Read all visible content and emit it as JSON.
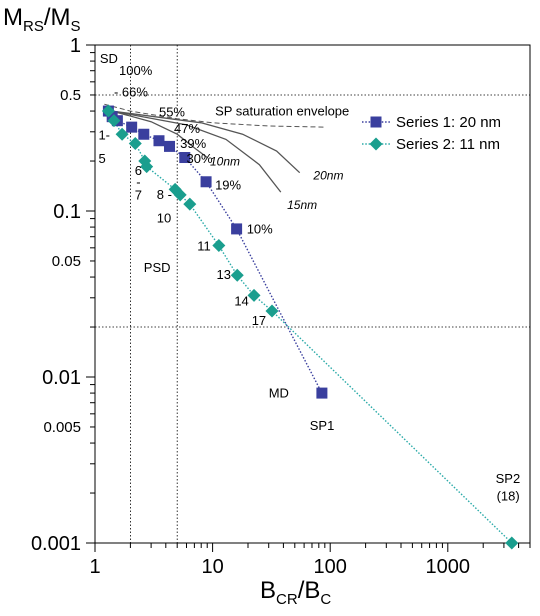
{
  "chart_data": {
    "type": "scatter",
    "x_scale": "log",
    "y_scale": "log",
    "xlim": [
      1,
      5000
    ],
    "ylim": [
      0.001,
      1
    ],
    "ylabel": {
      "main": "M",
      "sub1": "RS",
      "mid": "/M",
      "sub2": "S"
    },
    "xlabel": {
      "main": "B",
      "sub1": "CR",
      "mid": "/B",
      "sub2": "C"
    },
    "x_ticks": [
      {
        "v": 1,
        "label": "1"
      },
      {
        "v": 10,
        "label": "10"
      },
      {
        "v": 100,
        "label": "100"
      },
      {
        "v": 1000,
        "label": "1000"
      }
    ],
    "y_ticks": [
      {
        "v": 1,
        "label": "1",
        "major": true
      },
      {
        "v": 0.5,
        "label": "0.5",
        "major": false
      },
      {
        "v": 0.1,
        "label": "0.1",
        "major": true
      },
      {
        "v": 0.05,
        "label": "0.05",
        "major": false
      },
      {
        "v": 0.01,
        "label": "0.01",
        "major": true
      },
      {
        "v": 0.005,
        "label": "0.005",
        "major": false
      },
      {
        "v": 0.001,
        "label": "0.001",
        "major": true
      }
    ],
    "legend": {
      "placement": "top-right",
      "entries": [
        "Series 1: 20 nm",
        "Series 2: 11 nm"
      ]
    },
    "series": [
      {
        "name": "Series 1: 20 nm",
        "marker": "square",
        "color": "#3a3f9e",
        "line_color": "#3a3f9e",
        "points": [
          [
            1.3,
            0.4
          ],
          [
            1.4,
            0.37
          ],
          [
            1.55,
            0.35
          ],
          [
            2.05,
            0.32
          ],
          [
            2.6,
            0.29
          ],
          [
            3.5,
            0.265
          ],
          [
            4.3,
            0.245
          ],
          [
            5.8,
            0.21
          ],
          [
            8.8,
            0.15
          ],
          [
            16,
            0.078
          ],
          [
            85,
            0.008
          ]
        ]
      },
      {
        "name": "Series 2: 11 nm",
        "marker": "diamond",
        "color": "#1a9e8e",
        "line_color": "#2aaaa8",
        "points": [
          [
            1.3,
            0.4
          ],
          [
            1.45,
            0.35
          ],
          [
            1.7,
            0.29
          ],
          [
            2.2,
            0.255
          ],
          [
            2.65,
            0.2
          ],
          [
            2.75,
            0.185
          ],
          [
            4.8,
            0.135
          ],
          [
            5.3,
            0.125
          ],
          [
            6.4,
            0.11
          ],
          [
            11.3,
            0.062
          ],
          [
            16.2,
            0.041
          ],
          [
            22.5,
            0.031
          ],
          [
            32,
            0.025
          ],
          [
            3500,
            0.001
          ]
        ]
      }
    ],
    "reference_lines": [
      {
        "axis": "y",
        "value": 0.5
      },
      {
        "axis": "y",
        "value": 0.02
      },
      {
        "axis": "x",
        "value": 2
      },
      {
        "axis": "x",
        "value": 5
      }
    ],
    "theoretical_curves": [
      {
        "label": "10nm",
        "points": [
          [
            1.4,
            0.4
          ],
          [
            3,
            0.345
          ],
          [
            5,
            0.29
          ],
          [
            7,
            0.24
          ],
          [
            9,
            0.21
          ]
        ]
      },
      {
        "label": "20nm",
        "points": [
          [
            1.4,
            0.4
          ],
          [
            8,
            0.34
          ],
          [
            18,
            0.29
          ],
          [
            35,
            0.23
          ],
          [
            55,
            0.17
          ]
        ]
      },
      {
        "label": "15nm",
        "points": [
          [
            1.4,
            0.4
          ],
          [
            6,
            0.33
          ],
          [
            13,
            0.27
          ],
          [
            25,
            0.19
          ],
          [
            38,
            0.13
          ]
        ]
      }
    ],
    "saturation_envelope": {
      "label": "SP saturation envelope",
      "points": [
        [
          1.2,
          0.44
        ],
        [
          2,
          0.4
        ],
        [
          5,
          0.36
        ],
        [
          10,
          0.34
        ],
        [
          30,
          0.325
        ],
        [
          90,
          0.32
        ]
      ]
    },
    "regions": [
      {
        "text": "SD",
        "x": 1.1,
        "y": 0.78
      },
      {
        "text": "PSD",
        "x": 2.6,
        "y": 0.043
      },
      {
        "text": "MD",
        "x": 30,
        "y": 0.0075
      }
    ],
    "annotations": [
      {
        "text": "100%",
        "x": 1.6,
        "y": 0.66
      },
      {
        "text": "- 66%",
        "x": 1.45,
        "y": 0.49
      },
      {
        "text": "55%",
        "x": 3.5,
        "y": 0.37
      },
      {
        "text": "47%",
        "x": 4.7,
        "y": 0.295
      },
      {
        "text": "39%",
        "x": 5.3,
        "y": 0.24
      },
      {
        "text": "30%",
        "x": 6.0,
        "y": 0.195
      },
      {
        "text": "19%",
        "x": 10.5,
        "y": 0.135
      },
      {
        "text": "10%",
        "x": 19.5,
        "y": 0.073
      },
      {
        "text": "SP1",
        "x": 67,
        "y": 0.0048
      },
      {
        "text": "1-",
        "x": 1.07,
        "y": 0.27
      },
      {
        "text": "5",
        "x": 1.07,
        "y": 0.195
      },
      {
        "text": "6",
        "x": 2.18,
        "y": 0.165
      },
      {
        "text": "-",
        "x": 2.24,
        "y": 0.14
      },
      {
        "text": "7",
        "x": 2.18,
        "y": 0.117
      },
      {
        "text": "8 -",
        "x": 3.35,
        "y": 0.118
      },
      {
        "text": "10",
        "x": 3.35,
        "y": 0.085
      },
      {
        "text": "11",
        "x": 7.4,
        "y": 0.058
      },
      {
        "text": "13",
        "x": 10.8,
        "y": 0.039
      },
      {
        "text": "14",
        "x": 15.3,
        "y": 0.027
      },
      {
        "text": "17",
        "x": 21.5,
        "y": 0.0205
      },
      {
        "text": "SP2",
        "x": 2550,
        "y": 0.0023
      },
      {
        "text": "(18)",
        "x": 2600,
        "y": 0.0018
      }
    ],
    "curve_labels": [
      {
        "text": "10nm",
        "x": 9.5,
        "y": 0.188
      },
      {
        "text": "20nm",
        "x": 72,
        "y": 0.155
      },
      {
        "text": "15nm",
        "x": 43,
        "y": 0.103
      }
    ],
    "envelope_label": {
      "text": "SP saturation envelope",
      "x": 10.5,
      "y": 0.375
    }
  }
}
